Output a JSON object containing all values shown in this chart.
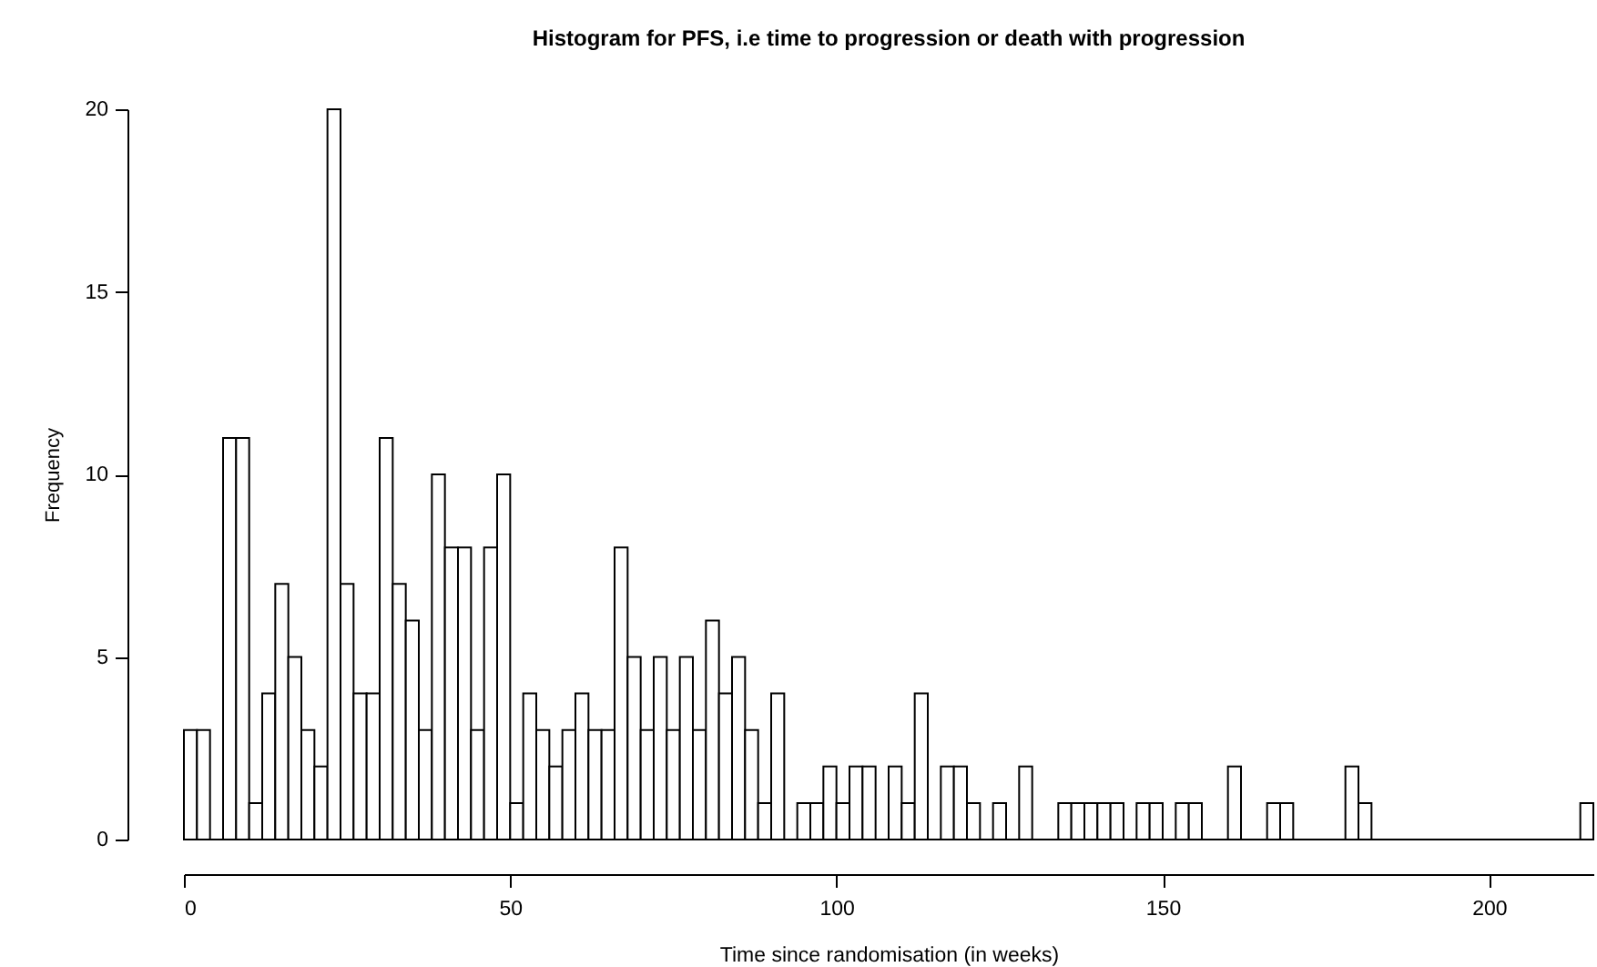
{
  "chart_data": {
    "type": "histogram",
    "title": "Histogram for PFS, i.e time to progression or death with progression",
    "xlabel": "Time since randomisation (in weeks)",
    "ylabel": "Frequency",
    "bins": [
      0,
      2,
      4,
      6,
      8,
      10,
      12,
      14,
      16,
      18,
      20,
      22,
      24,
      26,
      28,
      30,
      32,
      34,
      36,
      38,
      40,
      42,
      44,
      46,
      48,
      50,
      52,
      54,
      56,
      58,
      60,
      62,
      64,
      66,
      68,
      70,
      72,
      74,
      76,
      78,
      80,
      82,
      84,
      86,
      88,
      90,
      92,
      94,
      96,
      98,
      100,
      102,
      104,
      106,
      108,
      110,
      112,
      114,
      116,
      118,
      120,
      122,
      124,
      126,
      128,
      130,
      132,
      134,
      136,
      138,
      140,
      142,
      144,
      146,
      148,
      150,
      152,
      154,
      156,
      158,
      160,
      162,
      164,
      166,
      168,
      170,
      172,
      174,
      176,
      178,
      180,
      182,
      184,
      186,
      188,
      190,
      192,
      194,
      196,
      198,
      200,
      202,
      204,
      206,
      208,
      210,
      212,
      214,
      216
    ],
    "values": [
      3,
      3,
      0,
      11,
      11,
      1,
      4,
      7,
      5,
      3,
      2,
      20,
      7,
      4,
      4,
      11,
      7,
      6,
      3,
      10,
      8,
      8,
      3,
      8,
      10,
      1,
      4,
      3,
      2,
      3,
      4,
      3,
      3,
      8,
      5,
      3,
      5,
      3,
      5,
      3,
      6,
      4,
      5,
      3,
      1,
      4,
      0,
      1,
      1,
      2,
      1,
      2,
      2,
      0,
      2,
      1,
      4,
      0,
      2,
      2,
      1,
      0,
      1,
      0,
      2,
      0,
      0,
      1,
      1,
      1,
      1,
      1,
      0,
      1,
      1,
      0,
      1,
      1,
      0,
      0,
      2,
      0,
      0,
      1,
      1,
      0,
      0,
      0,
      0,
      2,
      1,
      0,
      0,
      0,
      0,
      0,
      0,
      0,
      0,
      0,
      0,
      0,
      0,
      0,
      0,
      0,
      0,
      1
    ],
    "color": "#ffffff",
    "xlim": [
      0,
      216
    ],
    "xticks": [
      0,
      50,
      100,
      150,
      200
    ],
    "ylim": [
      0,
      20
    ],
    "yticks": [
      0,
      5,
      10,
      15,
      20
    ],
    "grid": false
  }
}
